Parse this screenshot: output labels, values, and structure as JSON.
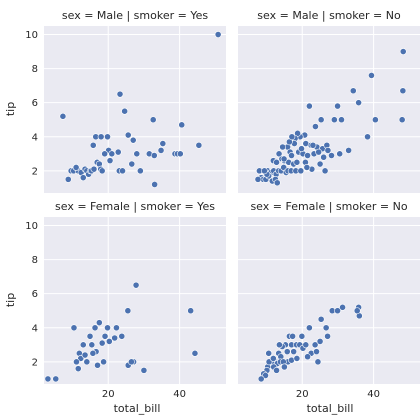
{
  "chart_data": {
    "type": "scatter",
    "x_label": "total_bill",
    "y_label": "tip",
    "xlim": [
      2,
      53
    ],
    "ylim": [
      0.7,
      10.5
    ],
    "x_ticks": [
      20,
      40
    ],
    "y_ticks": [
      2,
      4,
      6,
      8,
      10
    ],
    "marker_color": "#4c72b0",
    "panels": [
      {
        "title": "sex = Male | smoker = Yes",
        "points": [
          [
            50.8,
            10.0
          ],
          [
            7.3,
            5.2
          ],
          [
            23.3,
            6.5
          ],
          [
            24.6,
            5.5
          ],
          [
            32.6,
            5.0
          ],
          [
            40.6,
            4.7
          ],
          [
            45.4,
            3.5
          ],
          [
            16.5,
            4.0
          ],
          [
            18.0,
            4.0
          ],
          [
            19.8,
            4.0
          ],
          [
            25.6,
            4.1
          ],
          [
            27.0,
            3.8
          ],
          [
            35.3,
            3.6
          ],
          [
            34.8,
            3.2
          ],
          [
            15.8,
            3.5
          ],
          [
            20.1,
            3.2
          ],
          [
            21.0,
            3.0
          ],
          [
            22.8,
            3.1
          ],
          [
            28.0,
            3.0
          ],
          [
            31.5,
            3.0
          ],
          [
            32.9,
            2.9
          ],
          [
            38.7,
            3.0
          ],
          [
            39.4,
            3.0
          ],
          [
            40.2,
            3.0
          ],
          [
            9.6,
            2.0
          ],
          [
            10.3,
            2.0
          ],
          [
            11.6,
            2.0
          ],
          [
            12.4,
            1.9
          ],
          [
            13.0,
            1.6
          ],
          [
            13.5,
            2.1
          ],
          [
            14.0,
            2.0
          ],
          [
            14.5,
            1.8
          ],
          [
            15.0,
            2.0
          ],
          [
            15.3,
            2.0
          ],
          [
            16.0,
            2.1
          ],
          [
            16.9,
            2.5
          ],
          [
            17.5,
            2.4
          ],
          [
            17.9,
            2.1
          ],
          [
            18.3,
            2.0
          ],
          [
            19.0,
            3.0
          ],
          [
            20.5,
            2.6
          ],
          [
            23.1,
            2.0
          ],
          [
            24.0,
            2.0
          ],
          [
            26.6,
            2.4
          ],
          [
            29.0,
            2.0
          ],
          [
            33.0,
            1.2
          ],
          [
            8.8,
            1.5
          ],
          [
            11.0,
            2.2
          ]
        ]
      },
      {
        "title": "sex = Male | smoker = No",
        "points": [
          [
            48.3,
            9.0
          ],
          [
            39.4,
            7.6
          ],
          [
            29.9,
            5.8
          ],
          [
            34.3,
            6.7
          ],
          [
            48.2,
            6.7
          ],
          [
            35.8,
            6.0
          ],
          [
            40.5,
            5.0
          ],
          [
            48.0,
            5.0
          ],
          [
            22.0,
            5.8
          ],
          [
            25.3,
            5.0
          ],
          [
            29.0,
            5.0
          ],
          [
            31.0,
            5.0
          ],
          [
            38.3,
            4.0
          ],
          [
            23.7,
            4.6
          ],
          [
            20.7,
            4.1
          ],
          [
            19.4,
            4.0
          ],
          [
            18.7,
            4.2
          ],
          [
            18.0,
            3.9
          ],
          [
            17.8,
            3.6
          ],
          [
            21.0,
            3.6
          ],
          [
            22.5,
            3.5
          ],
          [
            24.1,
            3.4
          ],
          [
            25.7,
            3.3
          ],
          [
            26.9,
            3.5
          ],
          [
            27.2,
            3.2
          ],
          [
            15.9,
            3.4
          ],
          [
            16.6,
            3.1
          ],
          [
            17.0,
            2.9
          ],
          [
            19.0,
            3.1
          ],
          [
            20.2,
            3.0
          ],
          [
            21.5,
            2.9
          ],
          [
            23.3,
            3.0
          ],
          [
            24.6,
            3.1
          ],
          [
            28.2,
            2.9
          ],
          [
            13.5,
            3.0
          ],
          [
            14.3,
            2.7
          ],
          [
            15.0,
            2.6
          ],
          [
            16.2,
            2.5
          ],
          [
            17.6,
            2.4
          ],
          [
            18.5,
            2.5
          ],
          [
            20.9,
            2.5
          ],
          [
            22.7,
            2.1
          ],
          [
            25.0,
            2.4
          ],
          [
            26.4,
            2.0
          ],
          [
            10.3,
            2.0
          ],
          [
            11.2,
            1.9
          ],
          [
            12.0,
            2.0
          ],
          [
            12.7,
            1.8
          ],
          [
            13.4,
            2.0
          ],
          [
            14.1,
            2.0
          ],
          [
            14.8,
            2.2
          ],
          [
            15.5,
            1.9
          ],
          [
            16.0,
            2.0
          ],
          [
            16.9,
            2.0
          ],
          [
            18.2,
            2.0
          ],
          [
            19.6,
            2.0
          ],
          [
            21.3,
            2.2
          ],
          [
            8.5,
            1.6
          ],
          [
            9.1,
            1.5
          ],
          [
            9.8,
            1.5
          ],
          [
            10.6,
            1.7
          ],
          [
            11.6,
            1.4
          ],
          [
            12.5,
            1.5
          ],
          [
            13.0,
            1.3
          ],
          [
            7.6,
            1.5
          ],
          [
            10.1,
            1.8
          ],
          [
            11.9,
            2.6
          ],
          [
            14.9,
            2.7
          ],
          [
            16.4,
            3.7
          ],
          [
            17.1,
            4.0
          ],
          [
            19.8,
            3.3
          ],
          [
            23.0,
            3.5
          ],
          [
            26.0,
            2.8
          ],
          [
            30.5,
            3.0
          ],
          [
            33.0,
            3.2
          ],
          [
            8.0,
            2.0
          ],
          [
            9.4,
            2.0
          ],
          [
            12.8,
            2.5
          ],
          [
            14.5,
            3.4
          ]
        ]
      },
      {
        "title": "sex = Female | smoker = Yes",
        "points": [
          [
            27.8,
            6.5
          ],
          [
            25.5,
            5.0
          ],
          [
            43.1,
            5.0
          ],
          [
            44.3,
            2.5
          ],
          [
            17.5,
            4.3
          ],
          [
            19.8,
            4.0
          ],
          [
            16.3,
            4.0
          ],
          [
            10.4,
            4.0
          ],
          [
            22.3,
            4.0
          ],
          [
            14.9,
            3.5
          ],
          [
            19.1,
            3.5
          ],
          [
            21.8,
            3.4
          ],
          [
            23.8,
            3.5
          ],
          [
            15.4,
            3.0
          ],
          [
            16.6,
            2.6
          ],
          [
            18.3,
            3.1
          ],
          [
            20.3,
            3.2
          ],
          [
            13.0,
            3.0
          ],
          [
            11.9,
            2.5
          ],
          [
            12.3,
            2.2
          ],
          [
            13.5,
            2.4
          ],
          [
            14.0,
            2.0
          ],
          [
            11.1,
            2.0
          ],
          [
            11.6,
            1.6
          ],
          [
            18.7,
            2.0
          ],
          [
            25.6,
            1.8
          ],
          [
            27.1,
            2.0
          ],
          [
            30.0,
            1.5
          ],
          [
            3.1,
            1.0
          ],
          [
            5.3,
            1.0
          ],
          [
            17.0,
            1.8
          ],
          [
            15.7,
            2.5
          ],
          [
            26.5,
            2.0
          ]
        ]
      },
      {
        "title": "sex = Female | smoker = No",
        "points": [
          [
            35.8,
            5.2
          ],
          [
            36.0,
            4.7
          ],
          [
            35.4,
            5.0
          ],
          [
            31.3,
            5.2
          ],
          [
            28.4,
            5.0
          ],
          [
            29.9,
            5.0
          ],
          [
            25.3,
            4.5
          ],
          [
            26.7,
            4.0
          ],
          [
            27.1,
            3.5
          ],
          [
            22.0,
            4.0
          ],
          [
            23.6,
            3.0
          ],
          [
            25.0,
            3.2
          ],
          [
            16.4,
            3.5
          ],
          [
            17.3,
            3.5
          ],
          [
            17.0,
            3.0
          ],
          [
            18.4,
            3.0
          ],
          [
            19.3,
            3.0
          ],
          [
            20.2,
            2.8
          ],
          [
            21.0,
            3.0
          ],
          [
            22.5,
            2.5
          ],
          [
            24.4,
            2.0
          ],
          [
            15.3,
            3.0
          ],
          [
            14.4,
            2.9
          ],
          [
            13.4,
            2.5
          ],
          [
            14.0,
            2.3
          ],
          [
            15.8,
            2.6
          ],
          [
            17.6,
            2.6
          ],
          [
            16.0,
            2.0
          ],
          [
            17.0,
            2.1
          ],
          [
            12.5,
            2.0
          ],
          [
            13.0,
            1.9
          ],
          [
            13.9,
            2.0
          ],
          [
            14.7,
            2.0
          ],
          [
            15.0,
            1.7
          ],
          [
            11.4,
            2.0
          ],
          [
            12.0,
            1.7
          ],
          [
            10.6,
            2.5
          ],
          [
            10.3,
            1.7
          ],
          [
            10.1,
            1.5
          ],
          [
            9.2,
            1.3
          ],
          [
            9.7,
            1.2
          ],
          [
            10.7,
            2.0
          ],
          [
            8.5,
            1.0
          ],
          [
            12.8,
            1.5
          ],
          [
            18.5,
            2.2
          ],
          [
            19.9,
            3.5
          ],
          [
            21.5,
            2.3
          ],
          [
            24.0,
            2.6
          ],
          [
            11.9,
            2.2
          ],
          [
            13.6,
            3.0
          ]
        ]
      }
    ]
  }
}
